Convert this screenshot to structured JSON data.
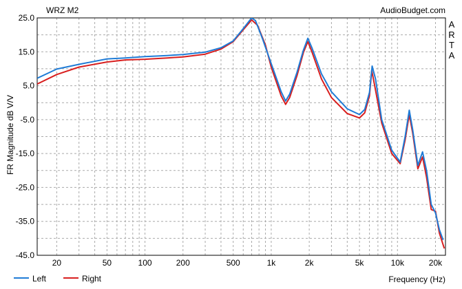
{
  "chart_data": {
    "type": "line",
    "title": "WRZ M2",
    "watermark": "AudioBudget.com",
    "side_label": [
      "A",
      "R",
      "T",
      "A"
    ],
    "xlabel": "Frequency (Hz)",
    "ylabel": "FR Magnitude dB V/V",
    "x_scale": "log",
    "xlim": [
      14,
      24000
    ],
    "ylim": [
      -45,
      25
    ],
    "grid": true,
    "legend_position": "bottom-left",
    "x_tick_labels": [
      {
        "value": 20,
        "label": "20"
      },
      {
        "value": 50,
        "label": "50"
      },
      {
        "value": 100,
        "label": "100"
      },
      {
        "value": 200,
        "label": "200"
      },
      {
        "value": 500,
        "label": "500"
      },
      {
        "value": 1000,
        "label": "1k"
      },
      {
        "value": 2000,
        "label": "2k"
      },
      {
        "value": 5000,
        "label": "5k"
      },
      {
        "value": 10000,
        "label": "10k"
      },
      {
        "value": 20000,
        "label": "20k"
      }
    ],
    "y_ticks": [
      {
        "value": 25,
        "label": "25.0"
      },
      {
        "value": 15,
        "label": "15.0"
      },
      {
        "value": 5,
        "label": "5.0"
      },
      {
        "value": -5,
        "label": "-5.0"
      },
      {
        "value": -15,
        "label": "-15.0"
      },
      {
        "value": -25,
        "label": "-25.0"
      },
      {
        "value": -35,
        "label": "-35.0"
      },
      {
        "value": -45,
        "label": "-45.0"
      }
    ],
    "series": [
      {
        "name": "Left",
        "color": "#1f7bd6",
        "points": [
          [
            14,
            7.2
          ],
          [
            20,
            9.9
          ],
          [
            30,
            11.3
          ],
          [
            50,
            12.9
          ],
          [
            70,
            13.2
          ],
          [
            100,
            13.6
          ],
          [
            150,
            13.9
          ],
          [
            200,
            14.2
          ],
          [
            300,
            14.9
          ],
          [
            400,
            16.2
          ],
          [
            500,
            18.2
          ],
          [
            600,
            21.8
          ],
          [
            700,
            25.0
          ],
          [
            750,
            24.2
          ],
          [
            850,
            19.0
          ],
          [
            1000,
            11.5
          ],
          [
            1200,
            3.2
          ],
          [
            1300,
            0.5
          ],
          [
            1400,
            2.5
          ],
          [
            1600,
            9.0
          ],
          [
            1800,
            15.5
          ],
          [
            1950,
            19.0
          ],
          [
            2100,
            16.2
          ],
          [
            2500,
            8.5
          ],
          [
            3000,
            3.2
          ],
          [
            4000,
            -1.8
          ],
          [
            5000,
            -3.5
          ],
          [
            5500,
            -2.0
          ],
          [
            6000,
            3.0
          ],
          [
            6300,
            10.8
          ],
          [
            6700,
            7.0
          ],
          [
            7500,
            -5.0
          ],
          [
            9000,
            -14.0
          ],
          [
            10500,
            -17.5
          ],
          [
            11500,
            -10.0
          ],
          [
            12400,
            -2.2
          ],
          [
            13200,
            -8.0
          ],
          [
            14500,
            -18.5
          ],
          [
            15800,
            -14.5
          ],
          [
            17000,
            -20.0
          ],
          [
            18500,
            -30.0
          ],
          [
            20000,
            -32.5
          ],
          [
            21500,
            -37.5
          ],
          [
            23000,
            -40.5
          ]
        ]
      },
      {
        "name": "Right",
        "color": "#d81e1e",
        "points": [
          [
            14,
            5.5
          ],
          [
            20,
            8.3
          ],
          [
            30,
            10.5
          ],
          [
            50,
            12.0
          ],
          [
            70,
            12.6
          ],
          [
            100,
            12.8
          ],
          [
            150,
            13.2
          ],
          [
            200,
            13.5
          ],
          [
            300,
            14.3
          ],
          [
            400,
            15.8
          ],
          [
            500,
            18.0
          ],
          [
            600,
            21.5
          ],
          [
            700,
            24.4
          ],
          [
            780,
            22.8
          ],
          [
            900,
            17.0
          ],
          [
            1000,
            10.5
          ],
          [
            1200,
            2.0
          ],
          [
            1300,
            -0.5
          ],
          [
            1400,
            1.5
          ],
          [
            1600,
            8.0
          ],
          [
            1800,
            14.8
          ],
          [
            1950,
            18.0
          ],
          [
            2100,
            15.0
          ],
          [
            2500,
            7.0
          ],
          [
            3000,
            1.5
          ],
          [
            4000,
            -3.2
          ],
          [
            5000,
            -4.5
          ],
          [
            5500,
            -3.0
          ],
          [
            6000,
            2.0
          ],
          [
            6250,
            9.5
          ],
          [
            6600,
            5.0
          ],
          [
            7500,
            -6.0
          ],
          [
            9000,
            -15.0
          ],
          [
            10500,
            -18.0
          ],
          [
            11500,
            -11.0
          ],
          [
            12400,
            -3.5
          ],
          [
            13200,
            -9.0
          ],
          [
            14500,
            -19.5
          ],
          [
            15800,
            -16.0
          ],
          [
            17000,
            -22.0
          ],
          [
            18500,
            -31.5
          ],
          [
            20000,
            -32.0
          ],
          [
            21500,
            -38.5
          ],
          [
            23500,
            -43.0
          ]
        ]
      }
    ]
  }
}
